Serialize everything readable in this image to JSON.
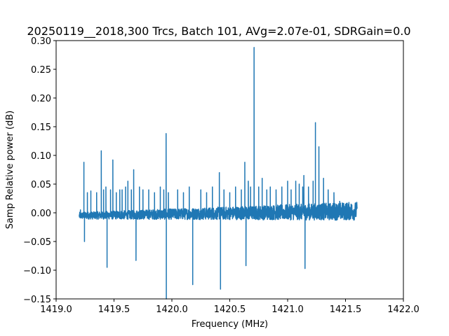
{
  "chart_data": {
    "type": "line",
    "title": "20250119__2018,300 Trcs, Batch 101, AVg=2.07e-01, SDRGain=0.0",
    "xlabel": "Frequency (MHz)",
    "ylabel": "Samp Relative power (dB)",
    "xlim": [
      1419.0,
      1422.0
    ],
    "ylim": [
      -0.15,
      0.3
    ],
    "xticks": [
      1419.0,
      1419.5,
      1420.0,
      1420.5,
      1421.0,
      1421.5,
      1422.0
    ],
    "xtick_labels": [
      "1419.0",
      "1419.5",
      "1420.0",
      "1420.5",
      "1421.0",
      "1421.5",
      "1422.0"
    ],
    "yticks": [
      -0.15,
      -0.1,
      -0.05,
      0.0,
      0.05,
      0.1,
      0.15,
      0.2,
      0.25,
      0.3
    ],
    "ytick_labels": [
      "−0.15",
      "−0.10",
      "−0.05",
      "0.00",
      "0.05",
      "0.10",
      "0.15",
      "0.20",
      "0.25",
      "0.30"
    ],
    "grid": false,
    "color": "#1f77b4",
    "series": [
      {
        "x_start": 1419.2,
        "x_end": 1421.6,
        "baseline_level": -0.005,
        "spikes": [
          {
            "x": 1419.21,
            "y": 0.005
          },
          {
            "x": 1419.24,
            "y": 0.088
          },
          {
            "x": 1419.245,
            "y": -0.05
          },
          {
            "x": 1419.27,
            "y": 0.035
          },
          {
            "x": 1419.3,
            "y": 0.038
          },
          {
            "x": 1419.35,
            "y": 0.035
          },
          {
            "x": 1419.39,
            "y": 0.108
          },
          {
            "x": 1419.41,
            "y": 0.04
          },
          {
            "x": 1419.43,
            "y": 0.045
          },
          {
            "x": 1419.44,
            "y": -0.095
          },
          {
            "x": 1419.47,
            "y": 0.04
          },
          {
            "x": 1419.49,
            "y": 0.092
          },
          {
            "x": 1419.52,
            "y": 0.035
          },
          {
            "x": 1419.55,
            "y": 0.04
          },
          {
            "x": 1419.57,
            "y": 0.04
          },
          {
            "x": 1419.6,
            "y": 0.045
          },
          {
            "x": 1419.62,
            "y": 0.055
          },
          {
            "x": 1419.65,
            "y": 0.04
          },
          {
            "x": 1419.67,
            "y": 0.075
          },
          {
            "x": 1419.69,
            "y": -0.083
          },
          {
            "x": 1419.72,
            "y": 0.045
          },
          {
            "x": 1419.75,
            "y": 0.04
          },
          {
            "x": 1419.8,
            "y": 0.04
          },
          {
            "x": 1419.85,
            "y": 0.035
          },
          {
            "x": 1419.9,
            "y": 0.045
          },
          {
            "x": 1419.93,
            "y": 0.04
          },
          {
            "x": 1419.95,
            "y": 0.138
          },
          {
            "x": 1419.952,
            "y": -0.15
          },
          {
            "x": 1419.97,
            "y": 0.035
          },
          {
            "x": 1420.05,
            "y": 0.04
          },
          {
            "x": 1420.1,
            "y": 0.035
          },
          {
            "x": 1420.15,
            "y": 0.045
          },
          {
            "x": 1420.18,
            "y": -0.125
          },
          {
            "x": 1420.25,
            "y": 0.04
          },
          {
            "x": 1420.3,
            "y": 0.035
          },
          {
            "x": 1420.35,
            "y": 0.045
          },
          {
            "x": 1420.41,
            "y": 0.07
          },
          {
            "x": 1420.42,
            "y": -0.133
          },
          {
            "x": 1420.45,
            "y": 0.04
          },
          {
            "x": 1420.5,
            "y": 0.035
          },
          {
            "x": 1420.55,
            "y": 0.045
          },
          {
            "x": 1420.6,
            "y": 0.04
          },
          {
            "x": 1420.63,
            "y": 0.088
          },
          {
            "x": 1420.64,
            "y": -0.092
          },
          {
            "x": 1420.66,
            "y": 0.055
          },
          {
            "x": 1420.68,
            "y": 0.045
          },
          {
            "x": 1420.71,
            "y": 0.288
          },
          {
            "x": 1420.75,
            "y": 0.045
          },
          {
            "x": 1420.78,
            "y": 0.06
          },
          {
            "x": 1420.82,
            "y": 0.04
          },
          {
            "x": 1420.85,
            "y": 0.045
          },
          {
            "x": 1420.9,
            "y": 0.04
          },
          {
            "x": 1420.95,
            "y": 0.045
          },
          {
            "x": 1421.0,
            "y": 0.055
          },
          {
            "x": 1421.03,
            "y": 0.04
          },
          {
            "x": 1421.07,
            "y": 0.055
          },
          {
            "x": 1421.1,
            "y": 0.05
          },
          {
            "x": 1421.13,
            "y": 0.045
          },
          {
            "x": 1421.14,
            "y": 0.065
          },
          {
            "x": 1421.15,
            "y": -0.097
          },
          {
            "x": 1421.18,
            "y": 0.045
          },
          {
            "x": 1421.22,
            "y": 0.055
          },
          {
            "x": 1421.24,
            "y": 0.157
          },
          {
            "x": 1421.27,
            "y": 0.115
          },
          {
            "x": 1421.31,
            "y": 0.06
          },
          {
            "x": 1421.35,
            "y": 0.04
          },
          {
            "x": 1421.4,
            "y": 0.035
          },
          {
            "x": 1421.45,
            "y": 0.02
          },
          {
            "x": 1421.5,
            "y": 0.015
          },
          {
            "x": 1421.55,
            "y": 0.01
          }
        ]
      }
    ]
  }
}
